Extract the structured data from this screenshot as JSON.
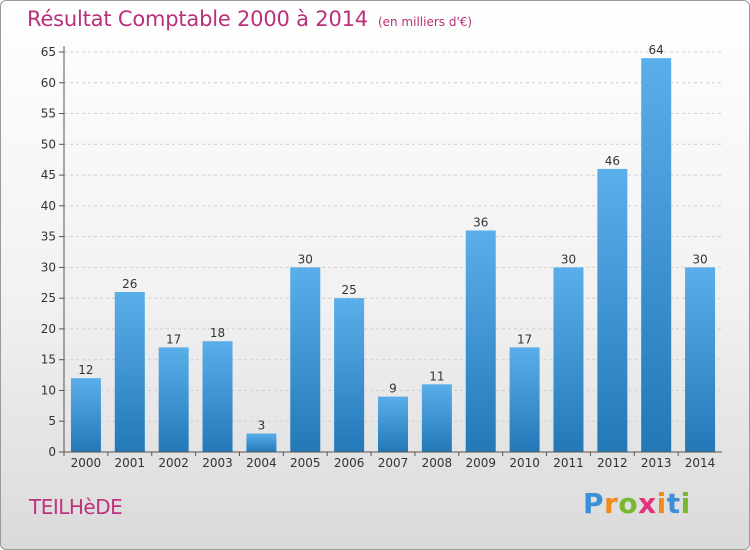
{
  "header": {
    "title": "Résultat Comptable 2000 à 2014",
    "unit": "(en milliers d'€)"
  },
  "location": "TEILHèDE",
  "brand": {
    "name": "Proxiti",
    "letters": [
      {
        "ch": "P",
        "color": "#3b8fd6"
      },
      {
        "ch": "r",
        "color": "#f08a1c"
      },
      {
        "ch": "o",
        "color": "#79b82c"
      },
      {
        "ch": "x",
        "color": "#e0347d"
      },
      {
        "ch": "i",
        "color": "#f08a1c"
      },
      {
        "ch": "t",
        "color": "#3b8fd6"
      },
      {
        "ch": "i",
        "color": "#79b82c"
      }
    ]
  },
  "colors": {
    "bar_top": "#5aafea",
    "bar_bottom": "#2378b8",
    "grid": "#cfcfcf",
    "axis": "#555555",
    "text": "#333333"
  },
  "chart_data": {
    "type": "bar",
    "categories": [
      "2000",
      "2001",
      "2002",
      "2003",
      "2004",
      "2005",
      "2006",
      "2007",
      "2008",
      "2009",
      "2010",
      "2011",
      "2012",
      "2013",
      "2014"
    ],
    "values": [
      12,
      26,
      17,
      18,
      3,
      30,
      25,
      9,
      11,
      36,
      17,
      30,
      46,
      64,
      30
    ],
    "title": "Résultat Comptable 2000 à 2014",
    "ylim": [
      0,
      65
    ],
    "yticks": [
      0,
      5,
      10,
      15,
      20,
      25,
      30,
      35,
      40,
      45,
      50,
      55,
      60,
      65
    ],
    "grid": true,
    "legend": "none"
  }
}
